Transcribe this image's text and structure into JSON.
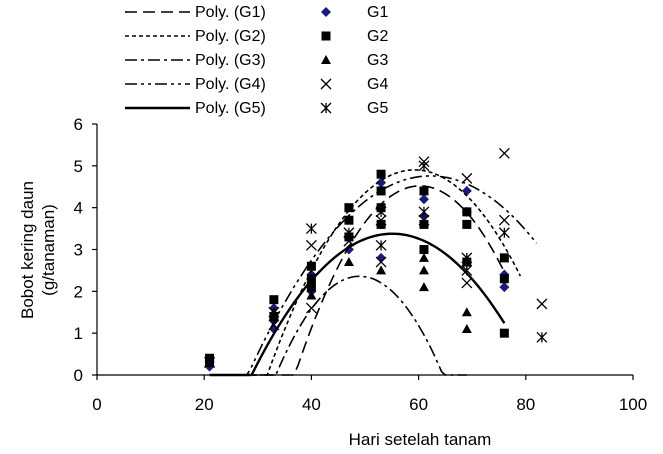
{
  "chart_data": {
    "type": "scatter",
    "xlabel": "Hari setelah tanam",
    "ylabel_lines": [
      "Bobot kering daun",
      "(g/tanaman)"
    ],
    "xlim": [
      0,
      100
    ],
    "ylim": [
      0,
      6
    ],
    "xticks": [
      0,
      20,
      40,
      60,
      80,
      100
    ],
    "yticks": [
      0,
      1,
      2,
      3,
      4,
      5,
      6
    ],
    "grid": false,
    "legend": {
      "placement": "top-left",
      "trendline_labels": [
        "Poly. (G1)",
        "Poly. (G2)",
        "Poly. (G3)",
        "Poly. (G4)",
        "Poly. (G5)"
      ],
      "series_labels": [
        "G1",
        "G2",
        "G3",
        "G4",
        "G5"
      ]
    },
    "series": [
      {
        "name": "G1",
        "marker": "diamond",
        "color": "#1a1a80",
        "points": [
          [
            21,
            0.3
          ],
          [
            21,
            0.2
          ],
          [
            33,
            1.1
          ],
          [
            33,
            1.3
          ],
          [
            33,
            1.6
          ],
          [
            40,
            2.0
          ],
          [
            40,
            2.4
          ],
          [
            47,
            3.0
          ],
          [
            47,
            3.3
          ],
          [
            53,
            2.8
          ],
          [
            53,
            3.6
          ],
          [
            53,
            4.6
          ],
          [
            61,
            3.8
          ],
          [
            61,
            4.2
          ],
          [
            69,
            3.9
          ],
          [
            69,
            4.4
          ],
          [
            76,
            2.1
          ],
          [
            76,
            2.4
          ]
        ]
      },
      {
        "name": "G2",
        "marker": "square",
        "color": "#000000",
        "points": [
          [
            21,
            0.4
          ],
          [
            21,
            0.3
          ],
          [
            33,
            1.4
          ],
          [
            33,
            1.8
          ],
          [
            40,
            2.1
          ],
          [
            40,
            2.3
          ],
          [
            40,
            2.6
          ],
          [
            47,
            3.3
          ],
          [
            47,
            3.7
          ],
          [
            47,
            4.0
          ],
          [
            53,
            3.6
          ],
          [
            53,
            4.0
          ],
          [
            53,
            4.4
          ],
          [
            53,
            4.8
          ],
          [
            61,
            3.0
          ],
          [
            61,
            3.6
          ],
          [
            61,
            4.4
          ],
          [
            69,
            2.7
          ],
          [
            69,
            3.6
          ],
          [
            69,
            3.9
          ],
          [
            76,
            2.8
          ],
          [
            76,
            2.3
          ],
          [
            76,
            1.0
          ]
        ]
      },
      {
        "name": "G3",
        "marker": "triangle",
        "color": "#000000",
        "points": [
          [
            21,
            0.3
          ],
          [
            33,
            1.5
          ],
          [
            40,
            1.9
          ],
          [
            47,
            2.7
          ],
          [
            53,
            2.5
          ],
          [
            61,
            2.1
          ],
          [
            61,
            2.5
          ],
          [
            61,
            2.8
          ],
          [
            69,
            1.1
          ],
          [
            69,
            1.5
          ]
        ]
      },
      {
        "name": "G4",
        "marker": "x",
        "color": "#000000",
        "points": [
          [
            21,
            0.3
          ],
          [
            33,
            1.2
          ],
          [
            40,
            1.6
          ],
          [
            40,
            3.1
          ],
          [
            47,
            3.2
          ],
          [
            53,
            2.7
          ],
          [
            53,
            3.7
          ],
          [
            61,
            5.1
          ],
          [
            61,
            3.7
          ],
          [
            69,
            2.2
          ],
          [
            69,
            4.7
          ],
          [
            76,
            3.7
          ],
          [
            76,
            5.3
          ],
          [
            83,
            1.7
          ]
        ]
      },
      {
        "name": "G5",
        "marker": "asterisk",
        "color": "#000000",
        "points": [
          [
            21,
            0.3
          ],
          [
            33,
            1.5
          ],
          [
            40,
            3.5
          ],
          [
            47,
            3.4
          ],
          [
            53,
            3.1
          ],
          [
            53,
            3.9
          ],
          [
            61,
            3.9
          ],
          [
            61,
            5.0
          ],
          [
            69,
            2.8
          ],
          [
            69,
            2.5
          ],
          [
            76,
            3.4
          ],
          [
            83,
            0.9
          ]
        ]
      }
    ],
    "trendlines": [
      {
        "name": "Poly. (G1)",
        "dash": "long-dash",
        "x_range": [
          21,
          76
        ],
        "coefficients": [
          -25.6,
          1.0,
          -0.0083
        ]
      },
      {
        "name": "Poly. (G2)",
        "dash": "short-dash",
        "x_range": [
          21,
          79
        ],
        "coefficients": [
          -17.9,
          0.77,
          -0.0065
        ]
      },
      {
        "name": "Poly. (G3)",
        "dash": "long-short-dash",
        "x_range": [
          22,
          69
        ],
        "coefficients": [
          -20.9,
          0.95,
          -0.0097
        ]
      },
      {
        "name": "Poly. (G4)",
        "dash": "long-short-short-dash",
        "x_range": [
          21,
          82
        ],
        "coefficients": [
          -11.1,
          0.51,
          -0.0041
        ]
      },
      {
        "name": "Poly. (G5)",
        "dash": "solid",
        "x_range": [
          21,
          76
        ],
        "coefficients": [
          -11.5,
          0.54,
          -0.0049
        ]
      }
    ]
  }
}
